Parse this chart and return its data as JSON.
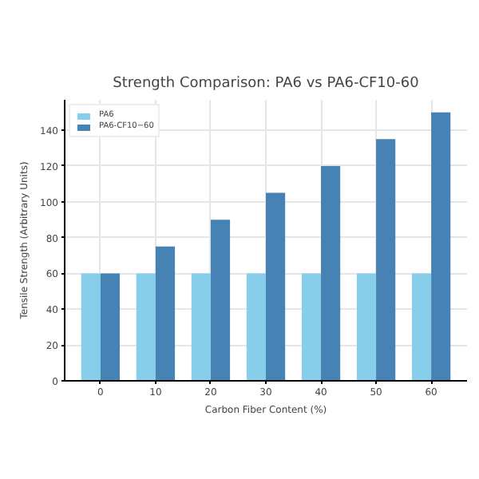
{
  "chart_data": {
    "type": "bar",
    "title": "Strength Comparison: PA6 vs PA6-CF10-60",
    "xlabel": "Carbon Fiber Content (%)",
    "ylabel": "Tensile Strength (Arbitrary Units)",
    "categories": [
      "0",
      "10",
      "20",
      "30",
      "40",
      "50",
      "60"
    ],
    "series": [
      {
        "name": "PA6",
        "color": "#87ceeb",
        "values": [
          60,
          60,
          60,
          60,
          60,
          60,
          60
        ]
      },
      {
        "name": "PA6-CF10−60",
        "color": "#4682b4",
        "values": [
          60,
          75,
          90,
          105,
          120,
          135,
          150
        ]
      }
    ],
    "ylim": [
      0,
      157
    ],
    "yticks": [
      0,
      20,
      40,
      60,
      80,
      100,
      120,
      140
    ],
    "grid": true,
    "legend": "top left"
  }
}
